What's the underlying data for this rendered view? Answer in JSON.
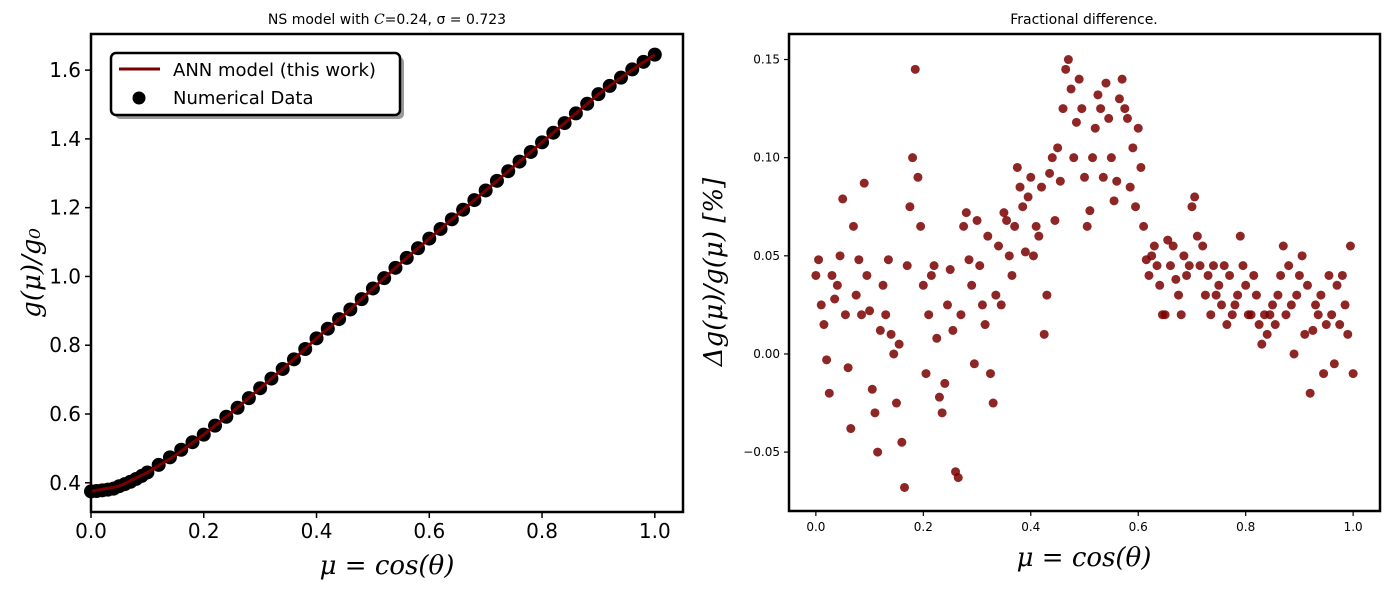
{
  "figure": {
    "colors": {
      "line": "#7a0000",
      "scatter": "#7a0000",
      "points": "#000000",
      "background": "#ffffff"
    }
  },
  "chart_data": [
    {
      "type": "line",
      "title_prefix": "NS model with ",
      "title_c_symbol": "C",
      "title_c_value": "=0.24, ",
      "title_sigma": "σ = 0.723",
      "xlabel": "μ = cos(θ)",
      "ylabel": "g(μ)/g₀",
      "xlim": [
        0.0,
        1.05
      ],
      "ylim": [
        0.315,
        1.705
      ],
      "xticks": [
        "0.0",
        "0.2",
        "0.4",
        "0.6",
        "0.8",
        "1.0"
      ],
      "yticks": [
        "0.4",
        "0.6",
        "0.8",
        "1.0",
        "1.2",
        "1.4",
        "1.6"
      ],
      "legend": {
        "placement": "top-left",
        "entries": [
          "ANN model (this work)",
          "Numerical Data"
        ]
      },
      "series": [
        {
          "name": "ANN model (this work)",
          "style": "line",
          "x": [
            0.0,
            0.05,
            0.1,
            0.15,
            0.2,
            0.25,
            0.3,
            0.35,
            0.4,
            0.45,
            0.5,
            0.55,
            0.6,
            0.65,
            0.7,
            0.75,
            0.8,
            0.85,
            0.9,
            0.95,
            1.0
          ],
          "y": [
            0.375,
            0.39,
            0.43,
            0.48,
            0.54,
            0.605,
            0.675,
            0.745,
            0.82,
            0.89,
            0.965,
            1.04,
            1.11,
            1.18,
            1.25,
            1.32,
            1.39,
            1.46,
            1.53,
            1.59,
            1.645
          ]
        },
        {
          "name": "Numerical Data",
          "style": "markers",
          "x": [
            0.0,
            0.01,
            0.02,
            0.03,
            0.04,
            0.05,
            0.06,
            0.07,
            0.08,
            0.09,
            0.1,
            0.12,
            0.14,
            0.16,
            0.18,
            0.2,
            0.22,
            0.24,
            0.26,
            0.28,
            0.3,
            0.32,
            0.34,
            0.36,
            0.38,
            0.4,
            0.42,
            0.44,
            0.46,
            0.48,
            0.5,
            0.52,
            0.54,
            0.56,
            0.58,
            0.6,
            0.62,
            0.64,
            0.66,
            0.68,
            0.7,
            0.72,
            0.74,
            0.76,
            0.78,
            0.8,
            0.82,
            0.84,
            0.86,
            0.88,
            0.9,
            0.92,
            0.94,
            0.96,
            0.98,
            1.0
          ],
          "y": [
            0.375,
            0.376,
            0.378,
            0.38,
            0.383,
            0.39,
            0.396,
            0.403,
            0.411,
            0.42,
            0.43,
            0.452,
            0.474,
            0.496,
            0.518,
            0.54,
            0.566,
            0.592,
            0.618,
            0.646,
            0.675,
            0.703,
            0.731,
            0.759,
            0.789,
            0.82,
            0.848,
            0.876,
            0.904,
            0.934,
            0.965,
            0.995,
            1.025,
            1.054,
            1.082,
            1.11,
            1.138,
            1.166,
            1.194,
            1.222,
            1.25,
            1.278,
            1.306,
            1.334,
            1.362,
            1.39,
            1.418,
            1.446,
            1.474,
            1.502,
            1.53,
            1.554,
            1.578,
            1.602,
            1.624,
            1.645
          ]
        }
      ]
    },
    {
      "type": "scatter",
      "title": "Fractional difference.",
      "xlabel": "μ = cos(θ)",
      "ylabel": "Δg(μ)/g(μ)  [%]",
      "xlim": [
        -0.05,
        1.05
      ],
      "ylim": [
        -0.08,
        0.163
      ],
      "xticks": [
        "0.0",
        "0.2",
        "0.4",
        "0.6",
        "0.8",
        "1.0"
      ],
      "yticks": [
        "−0.05",
        "0.00",
        "0.05",
        "0.10",
        "0.15"
      ],
      "series": [
        {
          "x": [
            0.0,
            0.005,
            0.01,
            0.015,
            0.02,
            0.025,
            0.03,
            0.035,
            0.04,
            0.045,
            0.05,
            0.055,
            0.06,
            0.065,
            0.07,
            0.075,
            0.08,
            0.085,
            0.09,
            0.095,
            0.1,
            0.105,
            0.11,
            0.115,
            0.12,
            0.125,
            0.13,
            0.135,
            0.14,
            0.145,
            0.15,
            0.155,
            0.16,
            0.165,
            0.17,
            0.175,
            0.18,
            0.185,
            0.19,
            0.195,
            0.2,
            0.205,
            0.21,
            0.215,
            0.22,
            0.225,
            0.23,
            0.235,
            0.24,
            0.245,
            0.25,
            0.255,
            0.26,
            0.265,
            0.27,
            0.275,
            0.28,
            0.285,
            0.29,
            0.295,
            0.3,
            0.305,
            0.31,
            0.315,
            0.32,
            0.325,
            0.33,
            0.335,
            0.34,
            0.345,
            0.35,
            0.355,
            0.36,
            0.365,
            0.37,
            0.375,
            0.38,
            0.385,
            0.39,
            0.395,
            0.4,
            0.405,
            0.41,
            0.415,
            0.42,
            0.425,
            0.43,
            0.435,
            0.44,
            0.445,
            0.45,
            0.455,
            0.46,
            0.465,
            0.47,
            0.475,
            0.48,
            0.485,
            0.49,
            0.495,
            0.5,
            0.505,
            0.51,
            0.515,
            0.52,
            0.525,
            0.53,
            0.535,
            0.54,
            0.545,
            0.55,
            0.555,
            0.56,
            0.565,
            0.57,
            0.575,
            0.58,
            0.585,
            0.59,
            0.595,
            0.6,
            0.605,
            0.61,
            0.615,
            0.62,
            0.625,
            0.63,
            0.635,
            0.64,
            0.645,
            0.65,
            0.655,
            0.66,
            0.665,
            0.67,
            0.675,
            0.68,
            0.685,
            0.69,
            0.695,
            0.7,
            0.705,
            0.71,
            0.715,
            0.72,
            0.725,
            0.73,
            0.735,
            0.74,
            0.745,
            0.75,
            0.755,
            0.76,
            0.765,
            0.77,
            0.775,
            0.78,
            0.785,
            0.79,
            0.795,
            0.8,
            0.805,
            0.81,
            0.815,
            0.82,
            0.825,
            0.83,
            0.835,
            0.84,
            0.845,
            0.85,
            0.855,
            0.86,
            0.865,
            0.87,
            0.875,
            0.88,
            0.885,
            0.89,
            0.895,
            0.9,
            0.905,
            0.91,
            0.915,
            0.92,
            0.925,
            0.93,
            0.935,
            0.94,
            0.945,
            0.95,
            0.955,
            0.96,
            0.965,
            0.97,
            0.975,
            0.98,
            0.985,
            0.99,
            0.995,
            1.0
          ],
          "y": [
            0.04,
            0.048,
            0.025,
            0.015,
            -0.003,
            -0.02,
            0.04,
            0.028,
            0.035,
            0.05,
            0.079,
            0.02,
            -0.007,
            -0.038,
            0.065,
            0.03,
            0.048,
            0.02,
            0.087,
            0.04,
            0.022,
            -0.018,
            -0.03,
            -0.05,
            0.012,
            0.035,
            0.02,
            0.048,
            0.01,
            0.0,
            -0.025,
            0.005,
            -0.045,
            -0.068,
            0.045,
            0.075,
            0.1,
            0.145,
            0.09,
            0.065,
            0.035,
            -0.01,
            0.02,
            0.04,
            0.045,
            0.008,
            -0.022,
            -0.03,
            -0.015,
            0.025,
            0.043,
            0.012,
            -0.06,
            -0.063,
            0.02,
            0.065,
            0.072,
            0.048,
            0.035,
            -0.005,
            0.068,
            0.045,
            0.025,
            0.015,
            0.06,
            -0.01,
            -0.025,
            0.03,
            0.055,
            0.025,
            0.072,
            0.068,
            0.05,
            0.04,
            0.065,
            0.095,
            0.085,
            0.075,
            0.052,
            0.08,
            0.09,
            0.05,
            0.065,
            0.06,
            0.085,
            0.01,
            0.03,
            0.092,
            0.1,
            0.068,
            0.105,
            0.088,
            0.125,
            0.145,
            0.15,
            0.135,
            0.1,
            0.118,
            0.14,
            0.125,
            0.09,
            0.065,
            0.073,
            0.1,
            0.115,
            0.132,
            0.125,
            0.09,
            0.138,
            0.12,
            0.1,
            0.078,
            0.088,
            0.13,
            0.14,
            0.125,
            0.12,
            0.085,
            0.105,
            0.075,
            0.115,
            0.095,
            0.065,
            0.048,
            0.04,
            0.05,
            0.055,
            0.045,
            0.035,
            0.02,
            0.02,
            0.058,
            0.045,
            0.055,
            0.038,
            0.03,
            0.02,
            0.05,
            0.04,
            0.045,
            0.075,
            0.08,
            0.06,
            0.045,
            0.055,
            0.03,
            0.04,
            0.02,
            0.045,
            0.03,
            0.035,
            0.025,
            0.045,
            0.015,
            0.04,
            0.02,
            0.025,
            0.03,
            0.06,
            0.045,
            0.035,
            0.02,
            0.02,
            0.04,
            0.03,
            0.015,
            0.005,
            0.02,
            0.01,
            0.02,
            0.025,
            0.015,
            0.03,
            0.04,
            0.055,
            0.02,
            0.045,
            0.025,
            0.0,
            0.03,
            0.04,
            0.05,
            0.01,
            0.035,
            -0.02,
            0.012,
            0.025,
            0.02,
            0.03,
            -0.01,
            0.015,
            0.04,
            0.02,
            -0.005,
            0.035,
            0.015,
            0.04,
            0.025,
            0.01,
            0.055,
            -0.01
          ]
        }
      ]
    }
  ]
}
